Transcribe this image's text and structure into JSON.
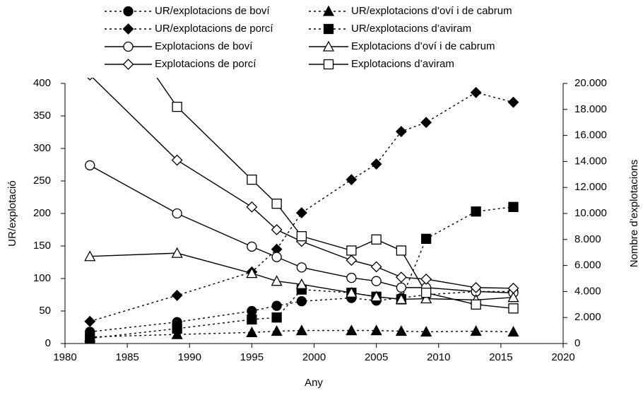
{
  "chart_data": {
    "type": "line",
    "xlabel": "Any",
    "ylabel": "UR/explotació",
    "y2label": "Nombre d’explotacions",
    "x": [
      1982,
      1989,
      1995,
      1997,
      1999,
      2003,
      2005,
      2007,
      2009,
      2013,
      2016
    ],
    "xlim": [
      1980,
      2020
    ],
    "xticks": [
      1980,
      1985,
      1990,
      1995,
      2000,
      2005,
      2010,
      2015,
      2020
    ],
    "ylim": [
      0,
      400
    ],
    "yticks": [
      0,
      50,
      100,
      150,
      200,
      250,
      300,
      350,
      400
    ],
    "y2lim": [
      0,
      20000
    ],
    "y2ticks": [
      0,
      {
        "value": 2000,
        "label": "2.000"
      },
      {
        "value": 4000,
        "label": "4.000"
      },
      {
        "value": 6000,
        "label": "6.000"
      },
      {
        "value": 8000,
        "label": "8.000"
      },
      {
        "value": 10000,
        "label": "10.000"
      },
      {
        "value": 12000,
        "label": "12.000"
      },
      {
        "value": 14000,
        "label": "14.000"
      },
      {
        "value": 16000,
        "label": "16.000"
      },
      {
        "value": 18000,
        "label": "18.000"
      },
      {
        "value": 20000,
        "label": "20.000"
      }
    ],
    "grid": false,
    "legend": "top",
    "series": [
      {
        "name": "UR/explotacions de boví",
        "color": "#000000",
        "marker": "circle",
        "filled": true,
        "dashed": true,
        "values": [
          18,
          33,
          50,
          58,
          65,
          70,
          66,
          70,
          75,
          80,
          80
        ]
      },
      {
        "name": "UR/explotacions d’oví i de cabrum",
        "color": "#000000",
        "marker": "triangle",
        "filled": true,
        "dashed": true,
        "values": [
          10,
          14,
          17,
          19,
          20,
          20,
          20,
          19,
          18,
          19,
          18
        ]
      },
      {
        "name": "UR/explotacions de porcí",
        "color": "#000000",
        "marker": "diamond",
        "filled": true,
        "dashed": true,
        "values": [
          34,
          74,
          110,
          145,
          201,
          252,
          276,
          326,
          340,
          386,
          371
        ]
      },
      {
        "name": "UR/explotacions d’aviram",
        "color": "#000000",
        "marker": "square",
        "filled": true,
        "dashed": true,
        "values": [
          8,
          23,
          37,
          40,
          83,
          78,
          72,
          68,
          161,
          203,
          210
        ]
      },
      {
        "name": "Explotacions de boví",
        "color": "#000000",
        "marker": "circle",
        "filled": false,
        "dashed": false,
        "axis": "y2",
        "values": [
          13700,
          10000,
          7450,
          6650,
          5850,
          5050,
          4800,
          4300,
          4300,
          4000,
          3900
        ]
      },
      {
        "name": "Explotacions d’oví i de cabrum",
        "color": "#000000",
        "marker": "triangle",
        "filled": false,
        "dashed": false,
        "axis": "y2",
        "values": [
          6700,
          6950,
          5400,
          4800,
          4550,
          3900,
          3600,
          3400,
          3450,
          3350,
          3550
        ]
      },
      {
        "name": "Explotacions de porcí",
        "color": "#000000",
        "marker": "diamond",
        "filled": false,
        "dashed": false,
        "axis": "y2",
        "values": [
          20650,
          14100,
          10500,
          8750,
          7850,
          6400,
          5900,
          5100,
          4950,
          4300,
          4250
        ]
      },
      {
        "name": "Explotacions d’aviram",
        "color": "#000000",
        "marker": "square",
        "filled": false,
        "dashed": false,
        "axis": "y2",
        "values": [
          27900,
          18200,
          12600,
          10750,
          8250,
          7150,
          8000,
          7150,
          3900,
          3000,
          2700
        ]
      }
    ]
  }
}
